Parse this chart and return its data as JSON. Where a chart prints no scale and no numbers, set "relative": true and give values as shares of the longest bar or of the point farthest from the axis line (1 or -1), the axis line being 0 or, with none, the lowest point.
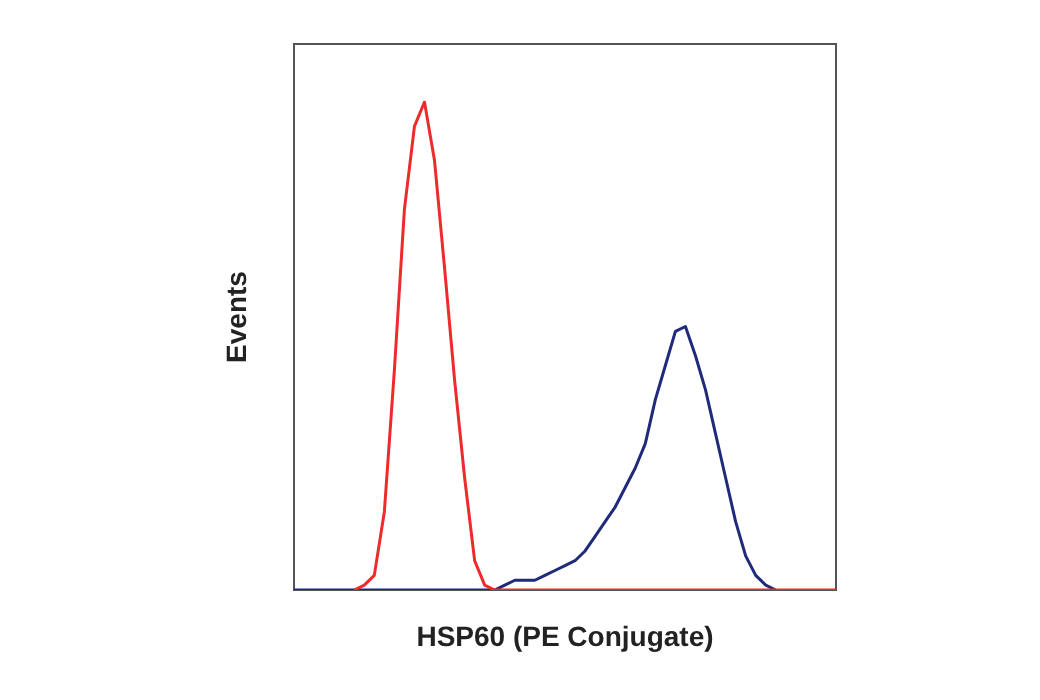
{
  "chart_data": {
    "type": "line",
    "relative": true,
    "xlabel": "HSP60 (PE Conjugate)",
    "ylabel": "Events",
    "marker": "none",
    "legend": false,
    "categories": [
      null,
      null,
      null,
      null,
      null,
      null,
      null,
      null,
      null,
      null,
      null,
      null,
      null,
      null,
      null,
      null,
      null,
      null,
      null,
      null,
      null,
      null,
      null,
      null,
      null,
      null,
      null,
      null,
      null,
      null,
      null,
      null,
      null,
      null,
      null,
      null,
      null,
      null,
      null,
      null,
      null,
      null,
      null,
      null,
      null,
      null,
      null,
      null,
      null,
      null,
      null,
      null,
      null,
      null,
      null
    ],
    "series": [
      {
        "color": "#ee2a2a",
        "values": [
          null,
          null,
          null,
          null,
          null,
          null,
          0,
          0.01,
          0.03,
          0.16,
          0.45,
          0.78,
          0.95,
          1,
          0.88,
          0.66,
          0.43,
          0.23,
          0.06,
          0.01,
          0,
          0,
          0,
          0,
          0,
          0,
          0,
          0,
          0,
          0,
          0,
          0,
          0,
          0,
          0,
          0,
          0,
          0,
          0,
          0,
          0,
          0,
          0,
          0,
          0,
          0,
          0,
          0,
          0,
          0,
          0,
          0,
          0,
          0,
          0
        ]
      },
      {
        "color": "#1f2a7a",
        "values": [
          0,
          0,
          0,
          0,
          0,
          0,
          0,
          0,
          0,
          0,
          0,
          0,
          0,
          0,
          0,
          0,
          0,
          0,
          0,
          0,
          0,
          0.01,
          0.02,
          0.02,
          0.02,
          0.03,
          0.04,
          0.05,
          0.06,
          0.08,
          0.11,
          0.14,
          0.17,
          0.21,
          0.25,
          0.3,
          0.39,
          0.46,
          0.53,
          0.54,
          0.48,
          0.41,
          0.32,
          0.23,
          0.14,
          0.07,
          0.03,
          0.01,
          0,
          null,
          null,
          null,
          null,
          null,
          null
        ]
      }
    ]
  }
}
